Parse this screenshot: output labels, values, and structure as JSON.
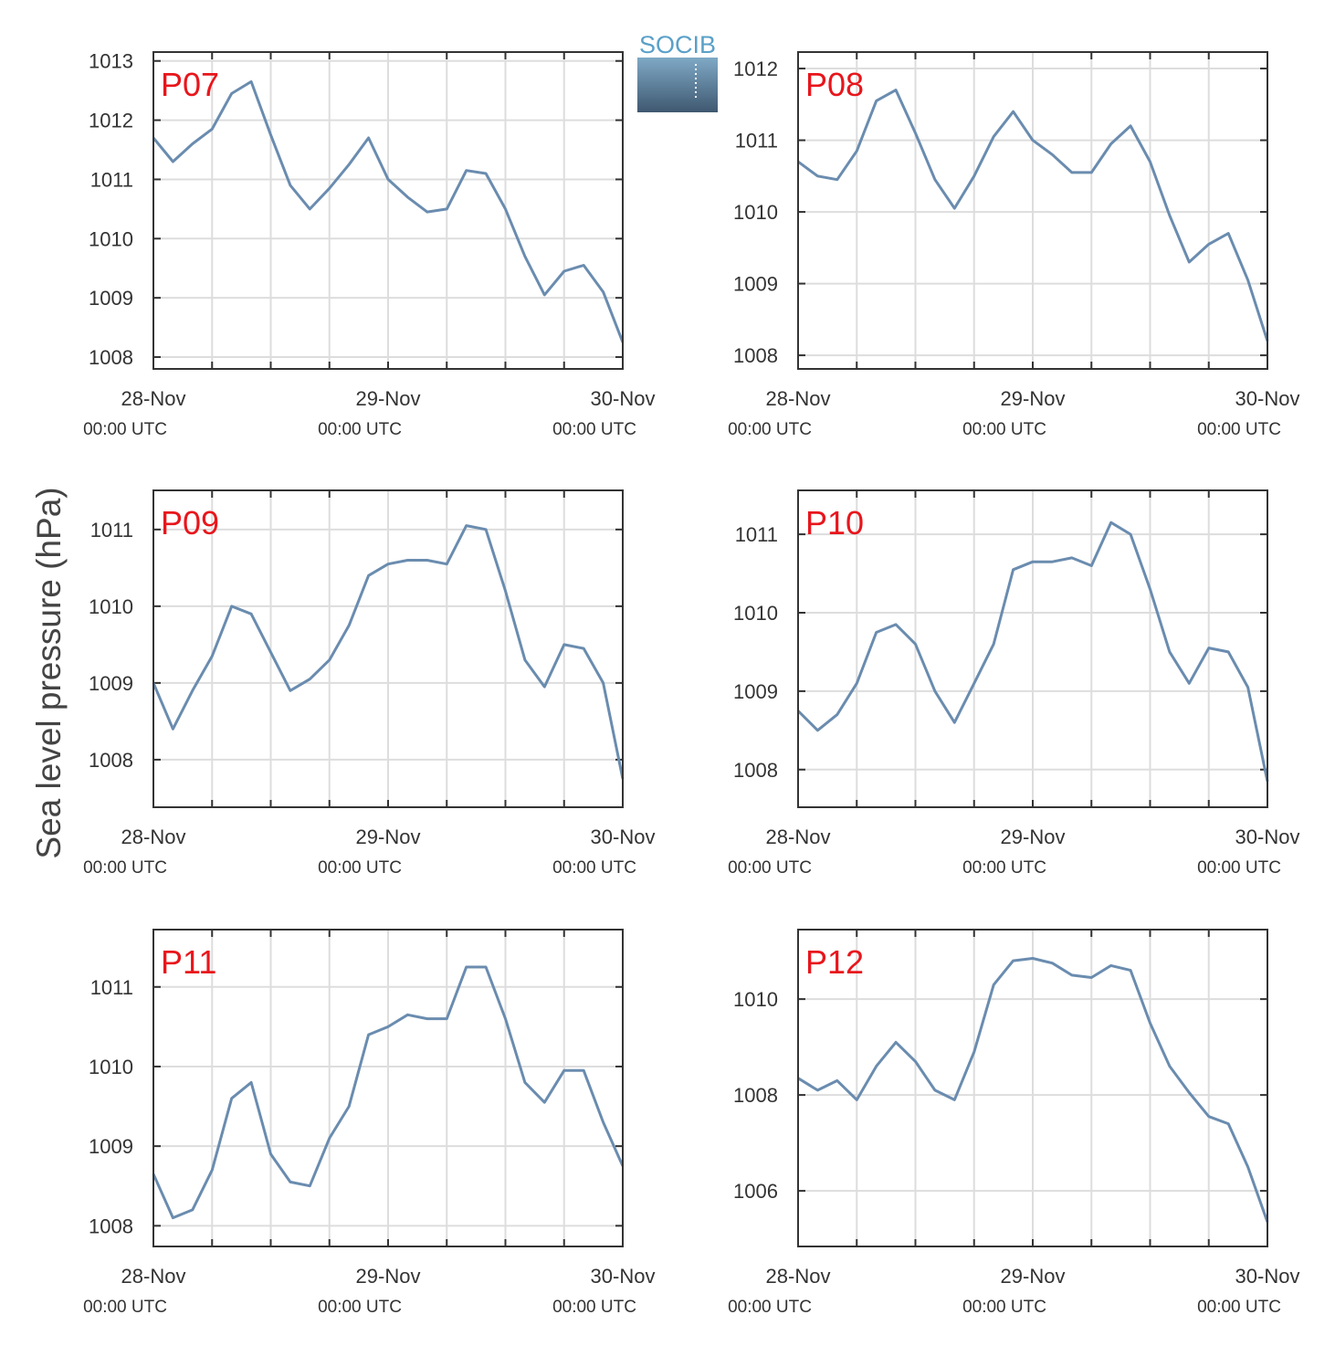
{
  "y_label": "Sea level pressure (hPa)",
  "logo": "SOCIB",
  "chart_data": [
    {
      "type": "line",
      "title": "P07",
      "color": "#6a8caf",
      "x": [
        0,
        2,
        4,
        6,
        8,
        10,
        12,
        14,
        16,
        18,
        20,
        22,
        24,
        26,
        28,
        30,
        32,
        34,
        36,
        38,
        40,
        42,
        44,
        46,
        48
      ],
      "values": [
        1011.7,
        1011.3,
        1011.6,
        1011.85,
        1012.45,
        1012.65,
        1011.75,
        1010.9,
        1010.5,
        1010.85,
        1011.25,
        1011.7,
        1011.0,
        1010.7,
        1010.45,
        1010.5,
        1011.15,
        1011.1,
        1010.5,
        1009.7,
        1009.05,
        1009.45,
        1009.55,
        1009.1,
        1008.25
      ],
      "xlim": [
        0,
        48
      ],
      "xticks": [
        {
          "value": 0,
          "label": "28-Nov",
          "sublabel": "00:00 UTC"
        },
        {
          "value": 24,
          "label": "29-Nov",
          "sublabel": "00:00 UTC"
        },
        {
          "value": 48,
          "label": "30-Nov",
          "sublabel": "00:00 UTC"
        }
      ],
      "xminor": [
        6,
        12,
        18,
        30,
        36,
        42
      ],
      "ylim": [
        1007.8,
        1013.15
      ],
      "yticks": [
        1008,
        1009,
        1010,
        1011,
        1012,
        1013
      ],
      "grid": true
    },
    {
      "type": "line",
      "title": "P08",
      "color": "#6a8caf",
      "x": [
        0,
        2,
        4,
        6,
        8,
        10,
        12,
        14,
        16,
        18,
        20,
        22,
        24,
        26,
        28,
        30,
        32,
        34,
        36,
        38,
        40,
        42,
        44,
        46,
        48
      ],
      "values": [
        1010.7,
        1010.5,
        1010.45,
        1010.85,
        1011.55,
        1011.7,
        1011.1,
        1010.45,
        1010.05,
        1010.5,
        1011.05,
        1011.4,
        1011.0,
        1010.8,
        1010.55,
        1010.55,
        1010.95,
        1011.2,
        1010.7,
        1009.95,
        1009.3,
        1009.55,
        1009.7,
        1009.05,
        1008.2
      ],
      "xlim": [
        0,
        48
      ],
      "xticks": [
        {
          "value": 0,
          "label": "28-Nov",
          "sublabel": "00:00 UTC"
        },
        {
          "value": 24,
          "label": "29-Nov",
          "sublabel": "00:00 UTC"
        },
        {
          "value": 48,
          "label": "30-Nov",
          "sublabel": "00:00 UTC"
        }
      ],
      "xminor": [
        6,
        12,
        18,
        30,
        36,
        42
      ],
      "ylim": [
        1007.81,
        1012.23
      ],
      "yticks": [
        1008,
        1009,
        1010,
        1011,
        1012
      ],
      "grid": true
    },
    {
      "type": "line",
      "title": "P09",
      "color": "#6a8caf",
      "x": [
        0,
        2,
        4,
        6,
        8,
        10,
        12,
        14,
        16,
        18,
        20,
        22,
        24,
        26,
        28,
        30,
        32,
        34,
        36,
        38,
        40,
        42,
        44,
        46,
        48
      ],
      "values": [
        1009.0,
        1008.4,
        1008.9,
        1009.35,
        1010.0,
        1009.9,
        1009.4,
        1008.9,
        1009.05,
        1009.3,
        1009.75,
        1010.4,
        1010.55,
        1010.6,
        1010.6,
        1010.55,
        1011.05,
        1011.0,
        1010.2,
        1009.3,
        1008.95,
        1009.5,
        1009.45,
        1009.0,
        1007.75
      ],
      "xlim": [
        0,
        48
      ],
      "xticks": [
        {
          "value": 0,
          "label": "28-Nov",
          "sublabel": "00:00 UTC"
        },
        {
          "value": 24,
          "label": "29-Nov",
          "sublabel": "00:00 UTC"
        },
        {
          "value": 48,
          "label": "30-Nov",
          "sublabel": "00:00 UTC"
        }
      ],
      "xminor": [
        6,
        12,
        18,
        30,
        36,
        42
      ],
      "ylim": [
        1007.38,
        1011.51
      ],
      "yticks": [
        1008,
        1009,
        1010,
        1011
      ],
      "grid": true
    },
    {
      "type": "line",
      "title": "P10",
      "color": "#6a8caf",
      "x": [
        0,
        2,
        4,
        6,
        8,
        10,
        12,
        14,
        16,
        18,
        20,
        22,
        24,
        26,
        28,
        30,
        32,
        34,
        36,
        38,
        40,
        42,
        44,
        46,
        48
      ],
      "values": [
        1008.75,
        1008.5,
        1008.7,
        1009.1,
        1009.75,
        1009.85,
        1009.6,
        1009.0,
        1008.6,
        1009.1,
        1009.6,
        1010.55,
        1010.65,
        1010.65,
        1010.7,
        1010.6,
        1011.15,
        1011.0,
        1010.3,
        1009.5,
        1009.1,
        1009.55,
        1009.5,
        1009.05,
        1007.85
      ],
      "xlim": [
        0,
        48
      ],
      "xticks": [
        {
          "value": 0,
          "label": "28-Nov",
          "sublabel": "00:00 UTC"
        },
        {
          "value": 24,
          "label": "29-Nov",
          "sublabel": "00:00 UTC"
        },
        {
          "value": 48,
          "label": "30-Nov",
          "sublabel": "00:00 UTC"
        }
      ],
      "xminor": [
        6,
        12,
        18,
        30,
        36,
        42
      ],
      "ylim": [
        1007.52,
        1011.56
      ],
      "yticks": [
        1008,
        1009,
        1010,
        1011
      ],
      "grid": true
    },
    {
      "type": "line",
      "title": "P11",
      "color": "#6a8caf",
      "x": [
        0,
        2,
        4,
        6,
        8,
        10,
        12,
        14,
        16,
        18,
        20,
        22,
        24,
        26,
        28,
        30,
        32,
        34,
        36,
        38,
        40,
        42,
        44,
        46,
        48
      ],
      "values": [
        1008.65,
        1008.1,
        1008.2,
        1008.7,
        1009.6,
        1009.8,
        1008.9,
        1008.55,
        1008.5,
        1009.1,
        1009.5,
        1010.4,
        1010.5,
        1010.65,
        1010.6,
        1010.6,
        1011.25,
        1011.25,
        1010.6,
        1009.8,
        1009.55,
        1009.95,
        1009.95,
        1009.3,
        1008.75
      ],
      "xlim": [
        0,
        48
      ],
      "xticks": [
        {
          "value": 0,
          "label": "28-Nov",
          "sublabel": "00:00 UTC"
        },
        {
          "value": 24,
          "label": "29-Nov",
          "sublabel": "00:00 UTC"
        },
        {
          "value": 48,
          "label": "30-Nov",
          "sublabel": "00:00 UTC"
        }
      ],
      "xminor": [
        6,
        12,
        18,
        30,
        36,
        42
      ],
      "ylim": [
        1007.74,
        1011.72
      ],
      "yticks": [
        1008,
        1009,
        1010,
        1011
      ],
      "grid": true
    },
    {
      "type": "line",
      "title": "P12",
      "color": "#6a8caf",
      "x": [
        0,
        2,
        4,
        6,
        8,
        10,
        12,
        14,
        16,
        18,
        20,
        22,
        24,
        26,
        28,
        30,
        32,
        34,
        36,
        38,
        40,
        42,
        44,
        46,
        48
      ],
      "values": [
        1008.35,
        1008.1,
        1008.3,
        1007.9,
        1008.6,
        1009.1,
        1008.7,
        1008.1,
        1007.9,
        1008.9,
        1010.3,
        1010.8,
        1010.85,
        1010.75,
        1010.5,
        1010.45,
        1010.7,
        1010.6,
        1009.5,
        1008.6,
        1008.05,
        1007.55,
        1007.4,
        1006.5,
        1005.35
      ],
      "xlim": [
        0,
        48
      ],
      "xticks": [
        {
          "value": 0,
          "label": "28-Nov",
          "sublabel": "00:00 UTC"
        },
        {
          "value": 24,
          "label": "29-Nov",
          "sublabel": "00:00 UTC"
        },
        {
          "value": 48,
          "label": "30-Nov",
          "sublabel": "00:00 UTC"
        }
      ],
      "xminor": [
        6,
        12,
        18,
        30,
        36,
        42
      ],
      "ylim": [
        1004.84,
        1011.45
      ],
      "yticks": [
        1006,
        1008,
        1010
      ],
      "grid": true
    }
  ]
}
